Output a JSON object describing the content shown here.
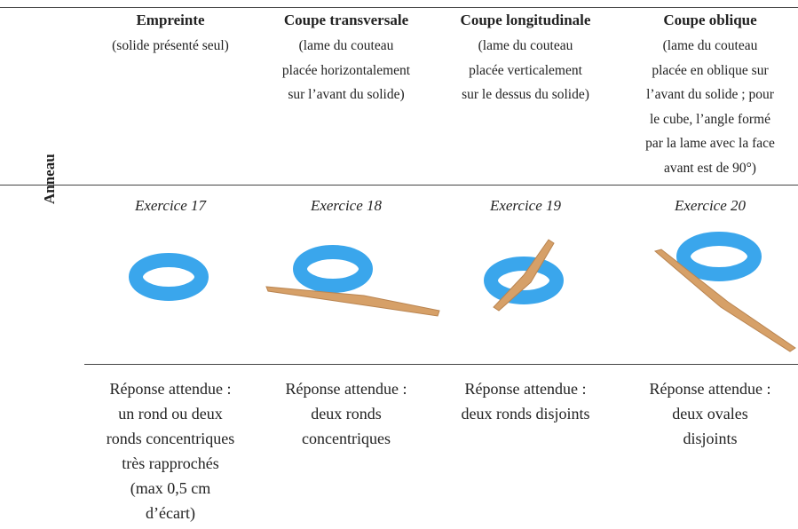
{
  "header": {
    "columns": [
      {
        "title": "Empreinte",
        "description": [
          "(solide présenté seul)"
        ]
      },
      {
        "title": "Coupe transversale",
        "description": [
          "(lame du couteau",
          "placée horizontalement",
          "sur l’avant du solide)"
        ]
      },
      {
        "title": "Coupe longitudinale",
        "description": [
          "(lame du couteau",
          "placée verticalement",
          "sur le dessus du solide)"
        ]
      },
      {
        "title": "Coupe oblique",
        "description": [
          "(lame du couteau",
          "placée en oblique sur",
          "l’avant du solide ; pour",
          "le cube, l’angle formé",
          "par la lame avec la face",
          "avant est de 90°)"
        ]
      }
    ]
  },
  "table": {
    "row_label": "Anneau",
    "exercises": [
      "Exercice 17",
      "Exercice 18",
      "Exercice 19",
      "Exercice 20"
    ],
    "answers": [
      [
        "Réponse attendue :",
        "un rond ou deux",
        "ronds concentriques",
        "très rapprochés",
        "(max 0,5 cm",
        "d’écart)"
      ],
      [
        "Réponse attendue :",
        "deux ronds",
        "concentriques"
      ],
      [
        "Réponse attendue :",
        "deux ronds disjoints"
      ],
      [
        "Réponse attendue :",
        "deux ovales",
        "disjoints"
      ]
    ]
  }
}
